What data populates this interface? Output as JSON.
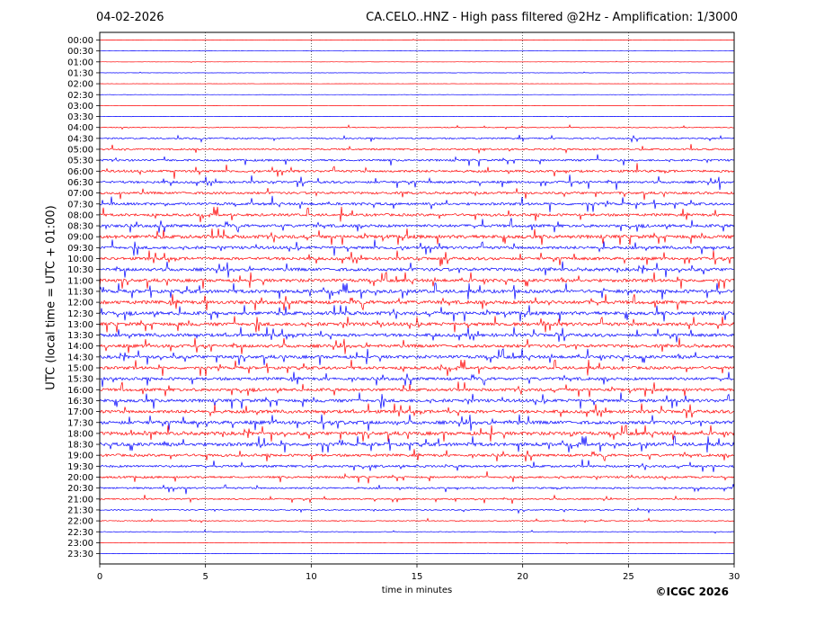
{
  "header": {
    "date": "04-02-2026",
    "title": "CA.CELO..HNZ - High pass filtered @2Hz - Amplification: 1/3000"
  },
  "footer": {
    "copyright": "©ICGC 2026"
  },
  "colors": {
    "red": "#ff0000",
    "blue": "#0000ff",
    "grid": "#000000"
  },
  "chart_data": {
    "type": "line",
    "title": "CA.CELO..HNZ - High pass filtered @2Hz - Amplification: 1/3000",
    "xlabel": "time in minutes",
    "ylabel": "UTC (local time = UTC + 01:00)",
    "xlim": [
      0,
      30
    ],
    "xticks": [
      "0",
      "5",
      "10",
      "15",
      "20",
      "25",
      "30"
    ],
    "grid": "vertical dotted lines at 5-minute intervals",
    "trace_colors_alternate": [
      "red",
      "blue"
    ],
    "rows": [
      "00:00",
      "00:30",
      "01:00",
      "01:30",
      "02:00",
      "02:30",
      "03:00",
      "03:30",
      "04:00",
      "04:30",
      "05:00",
      "05:30",
      "06:00",
      "06:30",
      "07:00",
      "07:30",
      "08:00",
      "08:30",
      "09:00",
      "09:30",
      "10:00",
      "10:30",
      "11:00",
      "11:30",
      "12:00",
      "12:30",
      "13:00",
      "13:30",
      "14:00",
      "14:30",
      "15:00",
      "15:30",
      "16:00",
      "16:30",
      "17:00",
      "17:30",
      "18:00",
      "18:30",
      "19:00",
      "19:30",
      "20:00",
      "20:30",
      "21:00",
      "21:30",
      "22:00",
      "22:30",
      "23:00",
      "23:30"
    ],
    "activity_level": [
      0.5,
      0.4,
      0.4,
      0.5,
      0.4,
      0.6,
      0.4,
      0.5,
      1.5,
      2.5,
      3,
      3.5,
      4,
      4,
      4,
      4.5,
      4.5,
      5,
      6,
      5,
      5,
      5.5,
      5.5,
      6,
      6,
      6,
      6,
      5.5,
      5.5,
      5.5,
      5,
      5,
      5,
      5.5,
      5.5,
      6,
      6,
      6,
      4.5,
      4,
      3.5,
      3,
      2.5,
      2,
      1.5,
      1,
      0.8,
      0.5
    ]
  }
}
